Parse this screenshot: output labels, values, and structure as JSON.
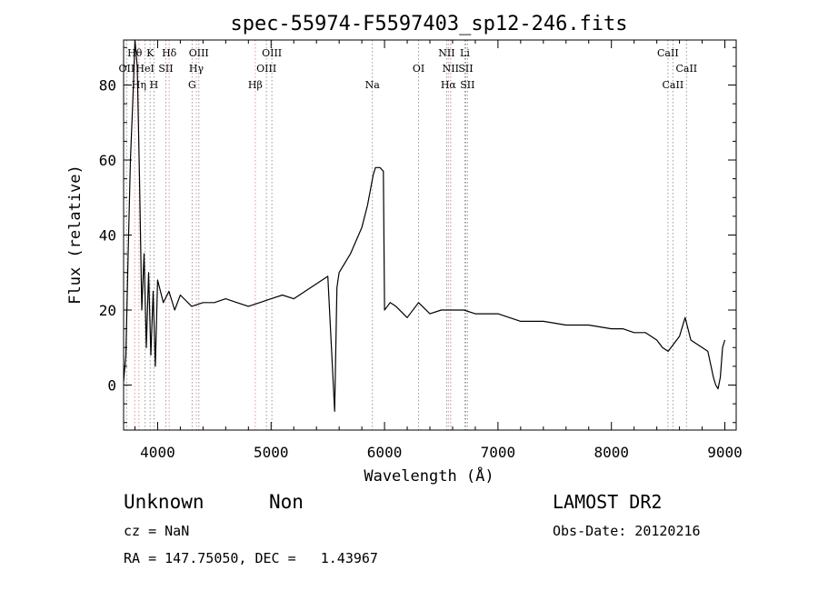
{
  "chart_data": {
    "type": "line",
    "title": "spec-55974-F5597403_sp12-246.fits",
    "xlabel": "Wavelength (Å)",
    "ylabel": "Flux (relative)",
    "xlim": [
      3700,
      9100
    ],
    "ylim": [
      -12,
      92
    ],
    "xticks": [
      4000,
      5000,
      6000,
      7000,
      8000,
      9000
    ],
    "yticks": [
      0,
      20,
      40,
      60,
      80
    ],
    "grid": false,
    "series": [
      {
        "color": "#000000",
        "x": [
          3700,
          3720,
          3740,
          3760,
          3780,
          3800,
          3820,
          3840,
          3860,
          3880,
          3900,
          3920,
          3940,
          3960,
          3980,
          4000,
          4050,
          4100,
          4150,
          4200,
          4300,
          4400,
          4500,
          4600,
          4700,
          4800,
          4900,
          5000,
          5100,
          5200,
          5300,
          5400,
          5500,
          5560,
          5580,
          5600,
          5700,
          5800,
          5850,
          5900,
          5920,
          5960,
          5990,
          6000,
          6050,
          6100,
          6200,
          6300,
          6400,
          6500,
          6600,
          6700,
          6800,
          6900,
          7000,
          7200,
          7400,
          7600,
          7800,
          8000,
          8100,
          8200,
          8300,
          8400,
          8450,
          8500,
          8550,
          8600,
          8650,
          8700,
          8750,
          8800,
          8850,
          8900,
          8920,
          8940,
          8960,
          8980,
          9000
        ],
        "y": [
          1,
          8,
          35,
          60,
          75,
          92,
          85,
          55,
          20,
          35,
          10,
          30,
          8,
          25,
          5,
          28,
          22,
          25,
          20,
          24,
          21,
          22,
          22,
          23,
          22,
          21,
          22,
          23,
          24,
          23,
          25,
          27,
          29,
          -7,
          26,
          30,
          35,
          42,
          48,
          56,
          58,
          58,
          57,
          20,
          22,
          21,
          18,
          22,
          19,
          20,
          20,
          20,
          19,
          19,
          19,
          17,
          17,
          16,
          16,
          15,
          15,
          14,
          14,
          12,
          10,
          9,
          11,
          13,
          18,
          12,
          11,
          10,
          9,
          2,
          0,
          -1,
          2,
          10,
          12
        ]
      }
    ],
    "lines": [
      {
        "x": 3727,
        "label": "OII",
        "row": 1,
        "color": "#999999"
      },
      {
        "x": 3798,
        "label": "Hθ",
        "row": 0,
        "color": "#e49090"
      },
      {
        "x": 3835,
        "label": "Hη",
        "row": 2,
        "color": "#e49090"
      },
      {
        "x": 3889,
        "label": "HeI",
        "row": 1,
        "color": "#999999"
      },
      {
        "x": 3934,
        "label": "K",
        "row": 0,
        "color": "#999999"
      },
      {
        "x": 3968,
        "label": "H",
        "row": 2,
        "color": "#999999"
      },
      {
        "x": 4072,
        "label": "SII",
        "row": 1,
        "color": "#999999"
      },
      {
        "x": 4102,
        "label": "Hδ",
        "row": 0,
        "color": "#e49090"
      },
      {
        "x": 4304,
        "label": "G",
        "row": 2,
        "color": "#999999"
      },
      {
        "x": 4341,
        "label": "Hγ",
        "row": 1,
        "color": "#e49090"
      },
      {
        "x": 4363,
        "label": "OIII",
        "row": 0,
        "color": "#999999"
      },
      {
        "x": 4861,
        "label": "Hβ",
        "row": 2,
        "color": "#e49090"
      },
      {
        "x": 4959,
        "label": "OIII",
        "row": 1,
        "color": "#999999"
      },
      {
        "x": 5007,
        "label": "OIII",
        "row": 0,
        "color": "#999999"
      },
      {
        "x": 5893,
        "label": "Na",
        "row": 2,
        "color": "#999999"
      },
      {
        "x": 6300,
        "label": "OI",
        "row": 1,
        "color": "#999999"
      },
      {
        "x": 6548,
        "label": "NII",
        "row": 0,
        "color": "#999999"
      },
      {
        "x": 6563,
        "label": "Hα",
        "row": 2,
        "color": "#e49090"
      },
      {
        "x": 6583,
        "label": "NII",
        "row": 1,
        "color": "#999999"
      },
      {
        "x": 6708,
        "label": "Li",
        "row": 0,
        "color": "#999999"
      },
      {
        "x": 6716,
        "label": "SII",
        "row": 1,
        "color": "#999999"
      },
      {
        "x": 6731,
        "label": "SII",
        "row": 2,
        "color": "#999999"
      },
      {
        "x": 8498,
        "label": "CaII",
        "row": 0,
        "color": "#999999"
      },
      {
        "x": 8542,
        "label": "CaII",
        "row": 2,
        "color": "#999999"
      },
      {
        "x": 8662,
        "label": "CaII",
        "row": 1,
        "color": "#999999"
      }
    ]
  },
  "info": {
    "class": "Unknown",
    "subclass": "Non",
    "survey": "LAMOST DR2",
    "cz": "cz = NaN",
    "obs_date": "Obs-Date: 20120216",
    "coords": "RA = 147.75050, DEC =   1.43967"
  }
}
